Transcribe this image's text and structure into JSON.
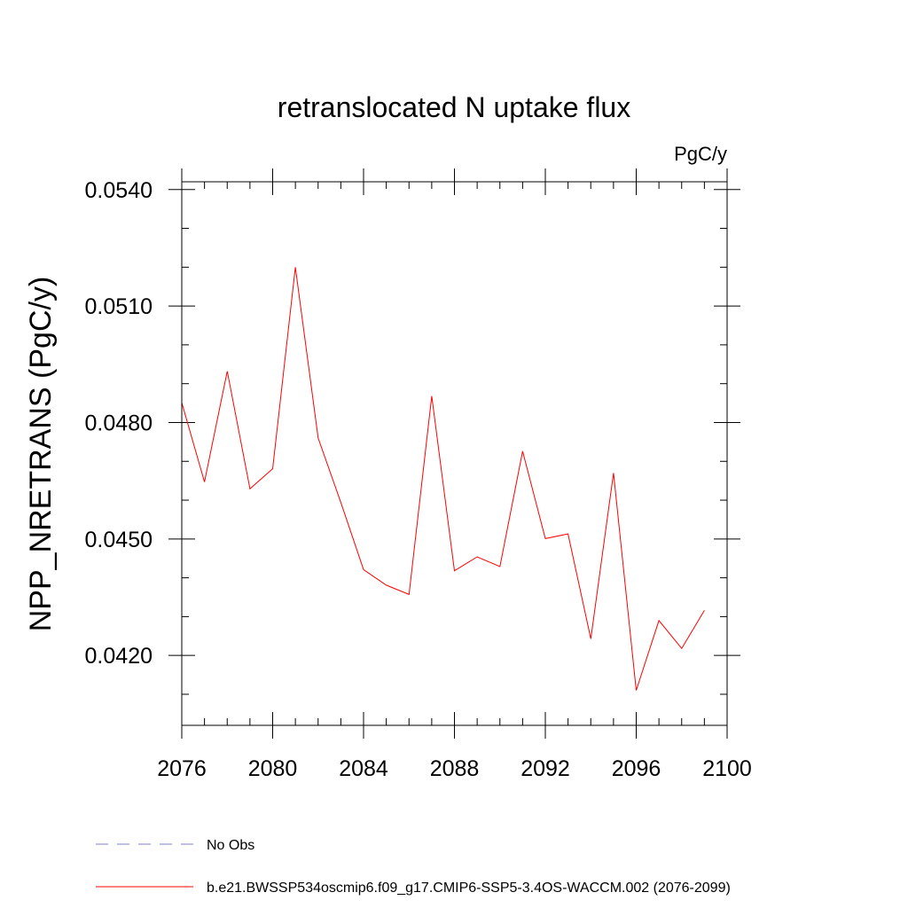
{
  "chart_data": {
    "type": "line",
    "title": "retranslocated N uptake flux",
    "units": "PgC/y",
    "xlabel": "",
    "ylabel": "NPP_NRETRANS  (PgC/y)",
    "xlim": [
      2076,
      2100
    ],
    "ylim": [
      0.0402,
      0.0542
    ],
    "x_ticks": [
      2076,
      2080,
      2084,
      2088,
      2092,
      2096,
      2100
    ],
    "x_tick_labels": [
      "2076",
      "2080",
      "2084",
      "2088",
      "2092",
      "2096",
      "2100"
    ],
    "y_ticks": [
      0.042,
      0.045,
      0.048,
      0.051,
      0.054
    ],
    "y_tick_labels": [
      "0.0420",
      "0.0450",
      "0.0480",
      "0.0510",
      "0.0540"
    ],
    "y_minor_step": 0.001,
    "series": [
      {
        "name": "b.e21.BWSSP534oscmip6.f09_g17.CMIP6-SSP5-3.4OS-WACCM.002 (2076-2099)",
        "color": "#ff0000",
        "style": "solid",
        "x": [
          2076,
          2077,
          2078,
          2079,
          2080,
          2081,
          2082,
          2083,
          2084,
          2085,
          2086,
          2087,
          2088,
          2089,
          2090,
          2091,
          2092,
          2093,
          2094,
          2095,
          2096,
          2097,
          2098,
          2099
        ],
        "values": [
          0.04851,
          0.04647,
          0.04932,
          0.04629,
          0.04681,
          0.052,
          0.0476,
          0.04594,
          0.04421,
          0.04381,
          0.04357,
          0.04868,
          0.04418,
          0.04454,
          0.04429,
          0.04726,
          0.04501,
          0.04513,
          0.04243,
          0.0467,
          0.0411,
          0.0429,
          0.04218,
          0.04316
        ]
      }
    ],
    "legend": [
      {
        "label": "No Obs",
        "color": "#7f7fd0",
        "style": "dashed"
      },
      {
        "label": "b.e21.BWSSP534oscmip6.f09_g17.CMIP6-SSP5-3.4OS-WACCM.002 (2076-2099)",
        "color": "#ff0000",
        "style": "solid"
      }
    ],
    "legend_position": "bottom-left"
  }
}
